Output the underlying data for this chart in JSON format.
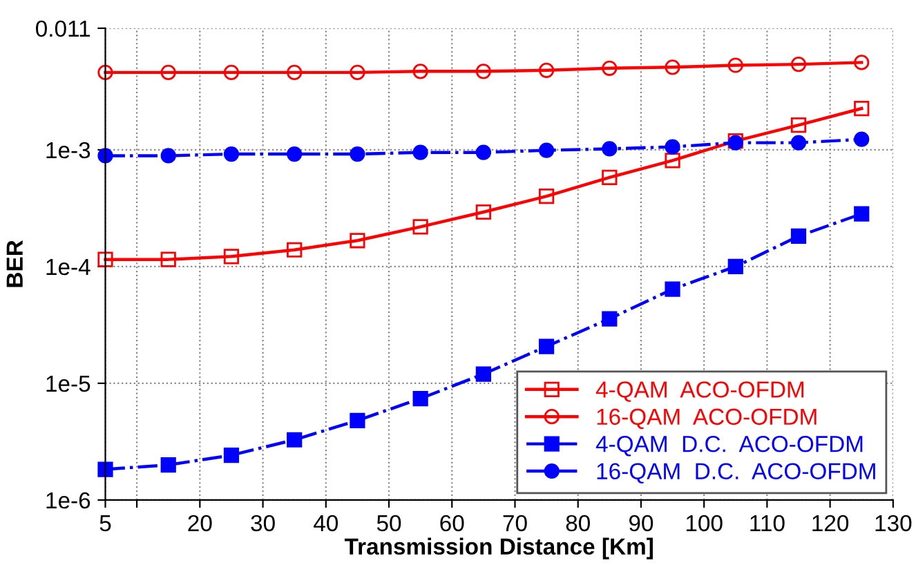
{
  "chart_data": {
    "type": "line",
    "xlabel": "Transmission Distance [Km]",
    "ylabel": "BER",
    "log": "y",
    "x": [
      5,
      15,
      25,
      35,
      45,
      55,
      65,
      75,
      85,
      95,
      105,
      115,
      125
    ],
    "xlim": [
      5,
      130
    ],
    "xticks": [
      5,
      {
        "value": 10,
        "label": null
      },
      20,
      30,
      40,
      50,
      60,
      70,
      80,
      90,
      100,
      110,
      120,
      130
    ],
    "ylim": [
      1e-06,
      0.011
    ],
    "yticks": [
      {
        "value": 1e-06,
        "label": "1e-6"
      },
      {
        "value": 1e-05,
        "label": "1e-5"
      },
      {
        "value": 0.0001,
        "label": "1e-4"
      },
      {
        "value": 0.001,
        "label": "1e-3"
      },
      0.011
    ],
    "grid": true,
    "legend": "bottom right",
    "series": [
      {
        "name": "4-QAM  ACO-OFDM",
        "color": "#ff0000",
        "marker": "square",
        "line_style": "solid",
        "values": [
          0.000115,
          0.000115,
          0.000122,
          0.000139,
          0.000167,
          0.000219,
          0.000293,
          0.0004,
          0.00058,
          0.00081,
          0.00119,
          0.00163,
          0.00226
        ]
      },
      {
        "name": "16-QAM  ACO-OFDM",
        "color": "#ff0000",
        "marker": "circle",
        "line_style": "solid",
        "values": [
          0.0046,
          0.0046,
          0.0046,
          0.0046,
          0.0046,
          0.0047,
          0.0047,
          0.0048,
          0.005,
          0.0051,
          0.0053,
          0.0054,
          0.0056
        ]
      },
      {
        "name": "4-QAM  D.C.  ACO-OFDM",
        "color": "#0000ff",
        "marker": "square",
        "line_style": "dashdot",
        "values": [
          1.83e-06,
          2e-06,
          2.42e-06,
          3.28e-06,
          4.8e-06,
          7.4e-06,
          1.2e-05,
          2.07e-05,
          3.57e-05,
          6.4e-05,
          0.0001,
          0.000182,
          0.000283
        ]
      },
      {
        "name": "16-QAM  D.C.  ACO-OFDM",
        "color": "#0000ff",
        "marker": "circle",
        "line_style": "dashdot",
        "values": [
          0.00089,
          0.00089,
          0.00092,
          0.00092,
          0.00092,
          0.00095,
          0.00095,
          0.00099,
          0.00102,
          0.00106,
          0.00115,
          0.00115,
          0.00123
        ]
      }
    ]
  }
}
